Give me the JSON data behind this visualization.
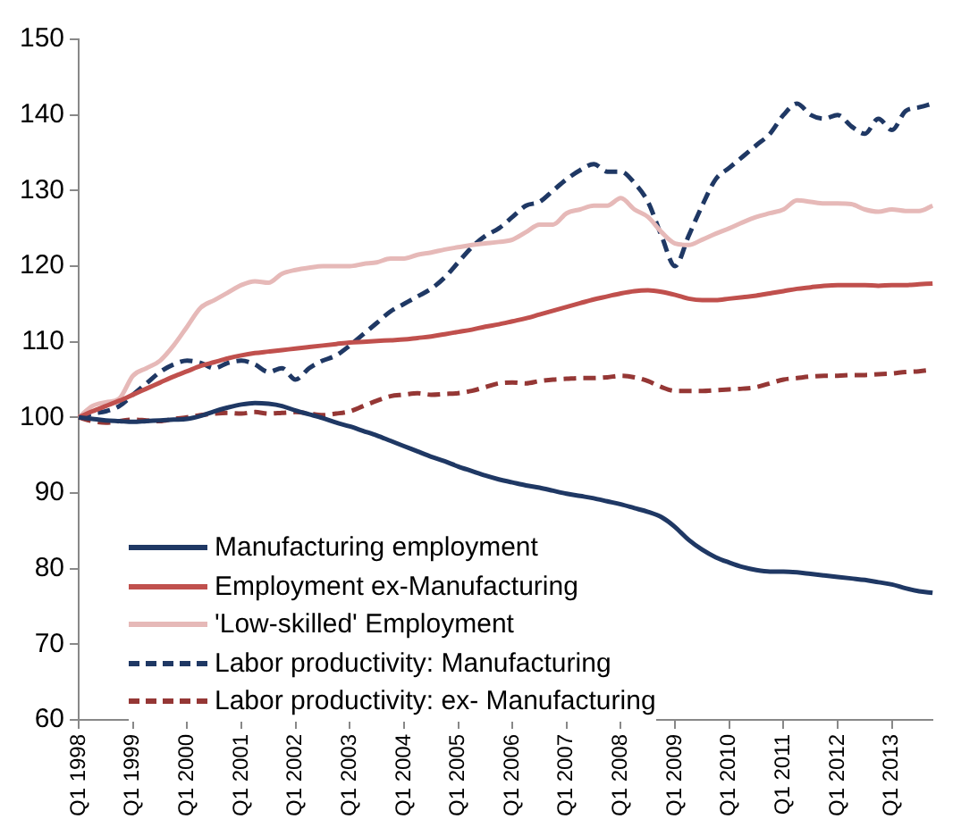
{
  "chart_data": {
    "type": "line",
    "categories": [
      "Q1 1998",
      null,
      null,
      null,
      "Q1 1999",
      null,
      null,
      null,
      "Q1 2000",
      null,
      null,
      null,
      "Q1 2001",
      null,
      null,
      null,
      "Q1 2002",
      null,
      null,
      null,
      "Q1 2003",
      null,
      null,
      null,
      "Q1 2004",
      null,
      null,
      null,
      "Q1 2005",
      null,
      null,
      null,
      "Q1 2006",
      null,
      null,
      null,
      "Q1 2007",
      null,
      null,
      null,
      "Q1 2008",
      null,
      null,
      null,
      "Q1 2009",
      null,
      null,
      null,
      "Q1 2010",
      null,
      null,
      null,
      "Q1 2011",
      null,
      null,
      null,
      "Q1 2012",
      null,
      null,
      null,
      "Q1 2013",
      null,
      null,
      null
    ],
    "ylim": [
      60,
      150
    ],
    "yticks": [
      60,
      70,
      80,
      90,
      100,
      110,
      120,
      130,
      140,
      150
    ],
    "grid": false,
    "legend": "bottom left",
    "marker": "none",
    "series": [
      {
        "name": "Manufacturing employment",
        "color": "#1f3864",
        "line_style": "solid",
        "values": [
          100,
          99.8,
          99.6,
          99.5,
          99.4,
          99.5,
          99.6,
          99.7,
          99.8,
          100.2,
          100.8,
          101.3,
          101.7,
          101.9,
          101.8,
          101.5,
          100.9,
          100.4,
          99.9,
          99.3,
          98.8,
          98.2,
          97.6,
          96.9,
          96.2,
          95.5,
          94.8,
          94.2,
          93.5,
          92.9,
          92.3,
          91.8,
          91.4,
          91.0,
          90.7,
          90.3,
          89.9,
          89.6,
          89.3,
          88.9,
          88.5,
          88.0,
          87.5,
          86.8,
          85.5,
          83.8,
          82.5,
          81.5,
          80.8,
          80.2,
          79.8,
          79.6,
          79.6,
          79.5,
          79.3,
          79.1,
          78.9,
          78.7,
          78.5,
          78.2,
          77.9,
          77.4,
          77.0,
          76.8
        ]
      },
      {
        "name": "Employment ex-Manufacturing",
        "color": "#c0504d",
        "line_style": "solid",
        "values": [
          100,
          100.8,
          101.5,
          102.2,
          103,
          103.8,
          104.6,
          105.4,
          106.1,
          106.8,
          107.3,
          107.8,
          108.2,
          108.5,
          108.7,
          108.9,
          109.1,
          109.3,
          109.5,
          109.7,
          109.9,
          110.0,
          110.1,
          110.2,
          110.3,
          110.5,
          110.7,
          111.0,
          111.3,
          111.6,
          112.0,
          112.3,
          112.7,
          113.1,
          113.6,
          114.1,
          114.6,
          115.1,
          115.6,
          116.0,
          116.4,
          116.7,
          116.8,
          116.6,
          116.2,
          115.7,
          115.5,
          115.5,
          115.7,
          115.9,
          116.1,
          116.4,
          116.7,
          117.0,
          117.2,
          117.4,
          117.5,
          117.5,
          117.5,
          117.4,
          117.5,
          117.5,
          117.6,
          117.7
        ]
      },
      {
        "name": "'Low-skilled' Employment",
        "color": "#e6b9b8",
        "line_style": "solid",
        "values": [
          100,
          101.5,
          102,
          102.5,
          105.5,
          106.5,
          107.5,
          109.5,
          112,
          114.5,
          115.5,
          116.5,
          117.5,
          118,
          117.8,
          119,
          119.5,
          119.8,
          120,
          120,
          120,
          120.3,
          120.5,
          121,
          121,
          121.5,
          121.8,
          122.2,
          122.5,
          122.8,
          123,
          123.2,
          123.5,
          124.5,
          125.5,
          125.5,
          127,
          127.5,
          128,
          128,
          129,
          127.5,
          126.5,
          124.5,
          123,
          122.8,
          123.5,
          124.3,
          125,
          125.8,
          126.5,
          127,
          127.5,
          128.7,
          128.5,
          128.3,
          128.3,
          128.2,
          127.5,
          127.2,
          127.5,
          127.3,
          127.3,
          128
        ]
      },
      {
        "name": "Labor productivity: Manufacturing",
        "color": "#1f3864",
        "line_style": "dashed",
        "values": [
          100,
          100.5,
          100.8,
          101.5,
          103,
          104.5,
          106,
          107,
          107.5,
          107.2,
          106.5,
          107.2,
          107.5,
          107,
          106,
          106.5,
          105,
          106.5,
          107.5,
          108.2,
          109.5,
          111,
          112.5,
          114,
          115,
          116,
          117,
          118.5,
          120.5,
          122.5,
          124,
          125,
          126.5,
          128,
          128.5,
          130,
          131.5,
          132.7,
          133.5,
          132.5,
          132.5,
          131,
          128.5,
          124,
          120,
          124,
          128,
          131.5,
          133,
          134.5,
          136,
          137.5,
          140,
          141.5,
          140,
          139.5,
          140,
          138.5,
          137.5,
          139.5,
          138,
          140.5,
          141,
          141.5
        ]
      },
      {
        "name": "Labor productivity: ex- Manufacturing",
        "color": "#953735",
        "line_style": "dashed",
        "values": [
          100,
          99.5,
          99.3,
          99.5,
          99.7,
          99.6,
          99.5,
          99.8,
          100,
          100.3,
          100.5,
          100.6,
          100.5,
          100.7,
          100.5,
          100.6,
          100.7,
          100.5,
          100.3,
          100.5,
          100.8,
          101.5,
          102.2,
          102.8,
          103,
          103.2,
          103,
          103.1,
          103.2,
          103.5,
          104,
          104.5,
          104.6,
          104.5,
          104.8,
          105,
          105.1,
          105.2,
          105.2,
          105.3,
          105.5,
          105.3,
          104.8,
          104,
          103.5,
          103.5,
          103.5,
          103.6,
          103.7,
          103.8,
          104,
          104.5,
          105,
          105.2,
          105.4,
          105.5,
          105.5,
          105.6,
          105.6,
          105.7,
          105.8,
          106,
          106.1,
          106.3
        ]
      }
    ]
  }
}
